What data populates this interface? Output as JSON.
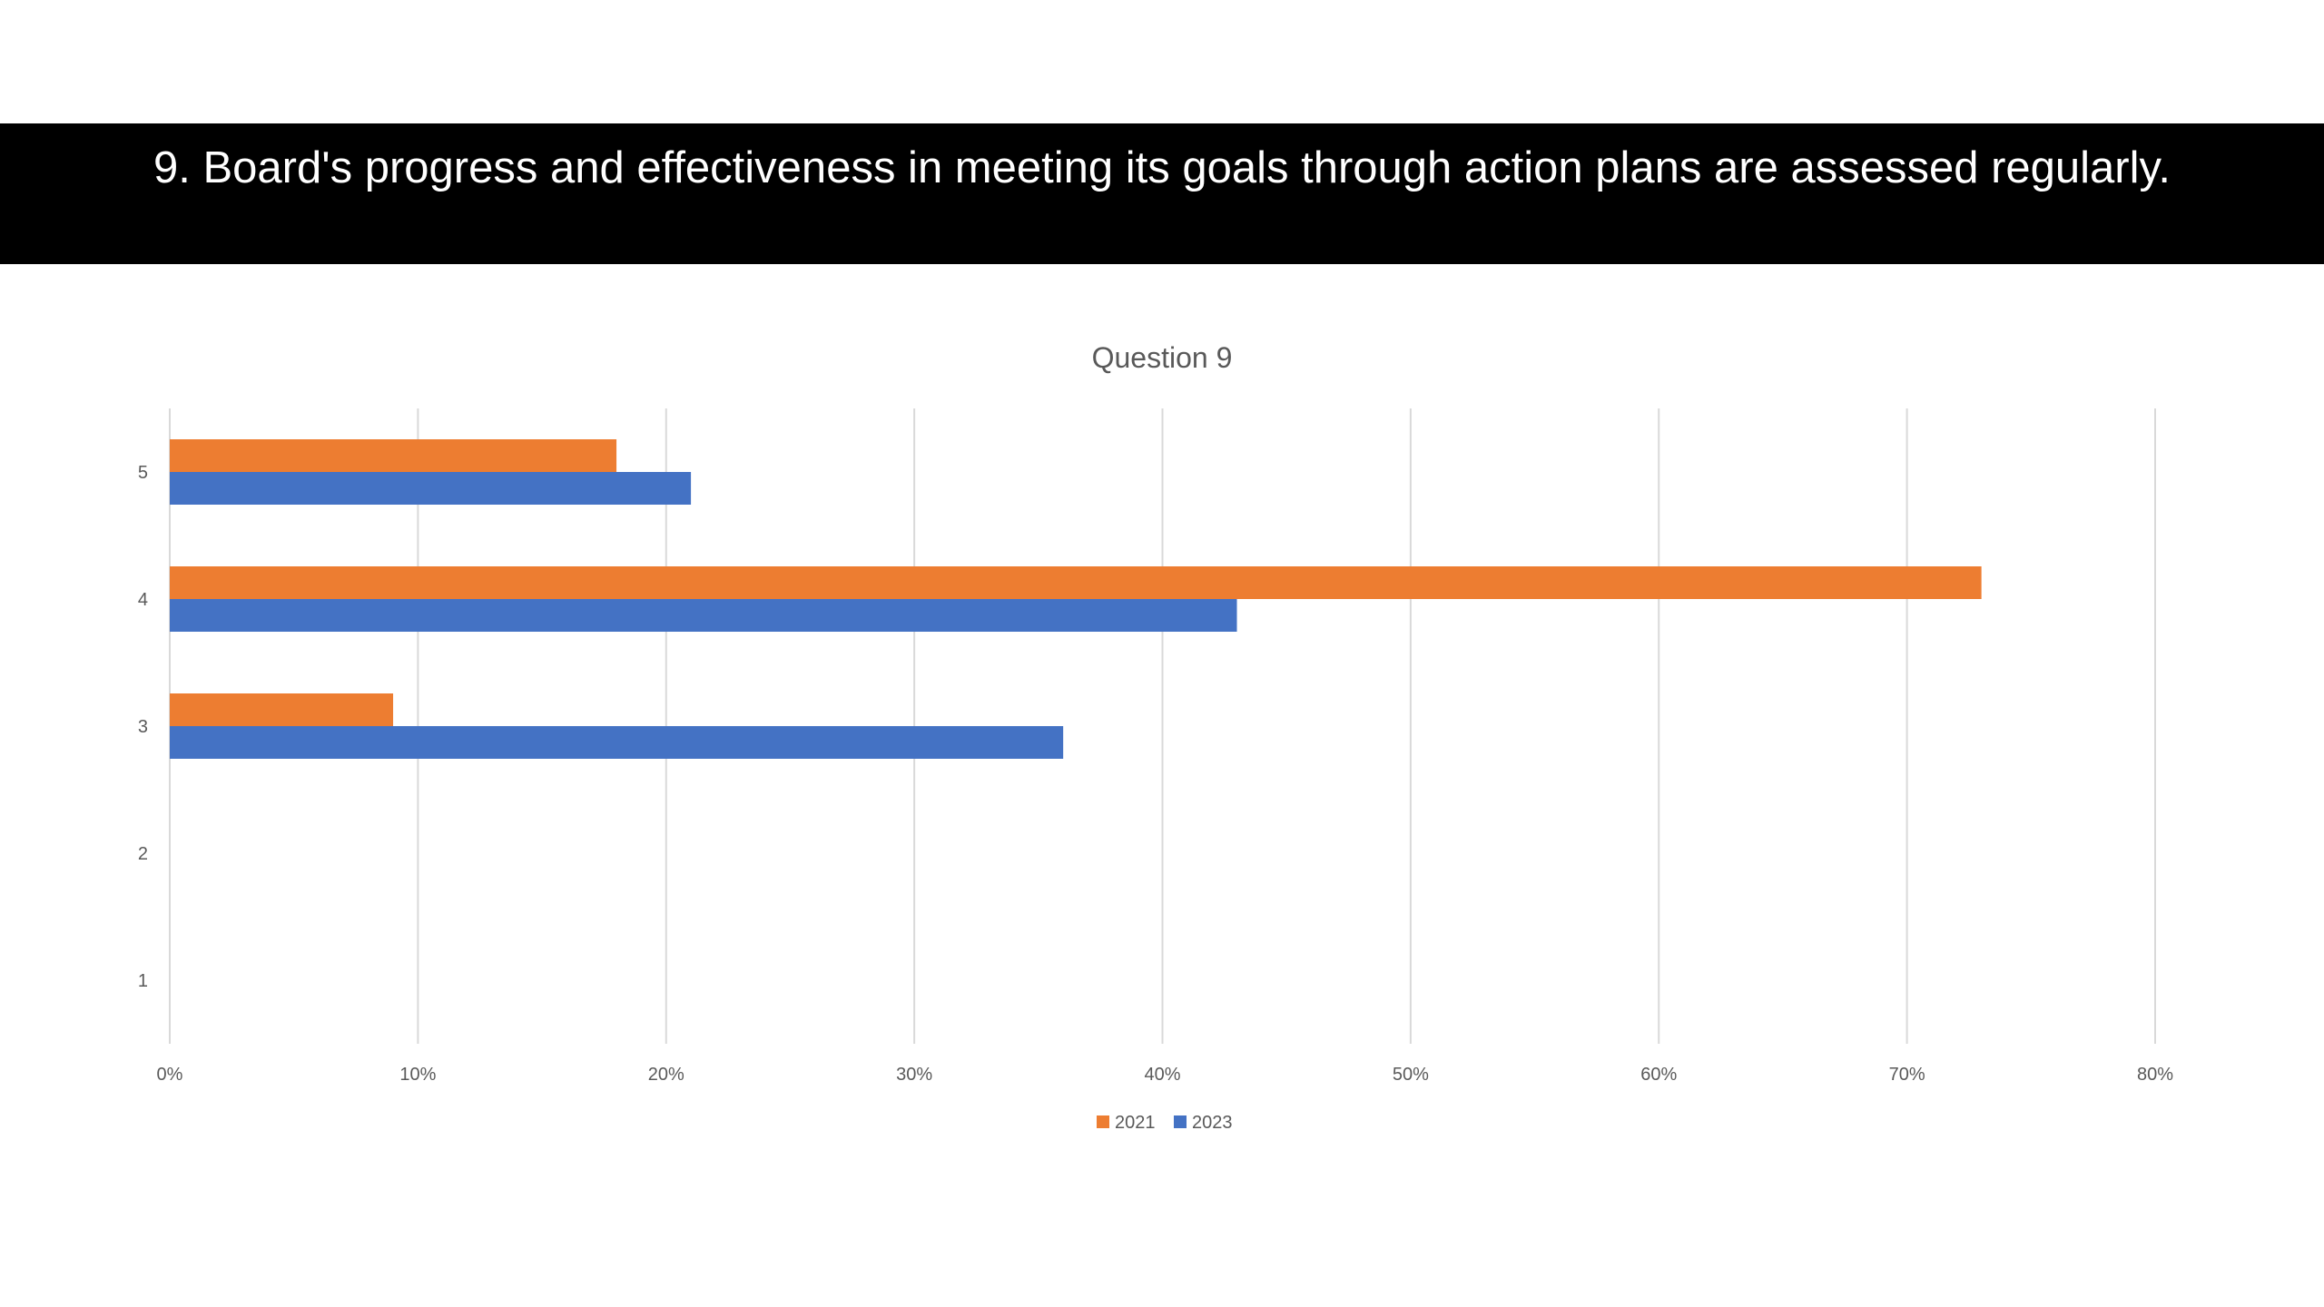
{
  "slide": {
    "heading": "9. Board's progress and effectiveness in meeting its goals through action plans are assessed regularly."
  },
  "colors": {
    "band": "#000000",
    "heading_text": "#ffffff",
    "series_2021": "#ED7D31",
    "series_2023": "#4472C4",
    "gridline": "#d9d9d9",
    "axis_text": "#595959"
  },
  "chart_data": {
    "type": "bar",
    "orientation": "horizontal",
    "title": "Question 9",
    "xlabel": "",
    "ylabel": "",
    "categories": [
      "5",
      "4",
      "3",
      "2",
      "1"
    ],
    "series": [
      {
        "name": "2021",
        "color": "#ED7D31",
        "values": [
          18,
          73,
          9,
          0,
          0
        ]
      },
      {
        "name": "2023",
        "color": "#4472C4",
        "values": [
          21,
          43,
          36,
          0,
          0
        ]
      }
    ],
    "xlim": [
      0,
      80
    ],
    "x_ticks": [
      0,
      10,
      20,
      30,
      40,
      50,
      60,
      70,
      80
    ],
    "x_tick_labels": [
      "0%",
      "10%",
      "20%",
      "30%",
      "40%",
      "50%",
      "60%",
      "70%",
      "80%"
    ],
    "value_unit": "percent",
    "grid": "vertical",
    "legend_position": "bottom"
  }
}
